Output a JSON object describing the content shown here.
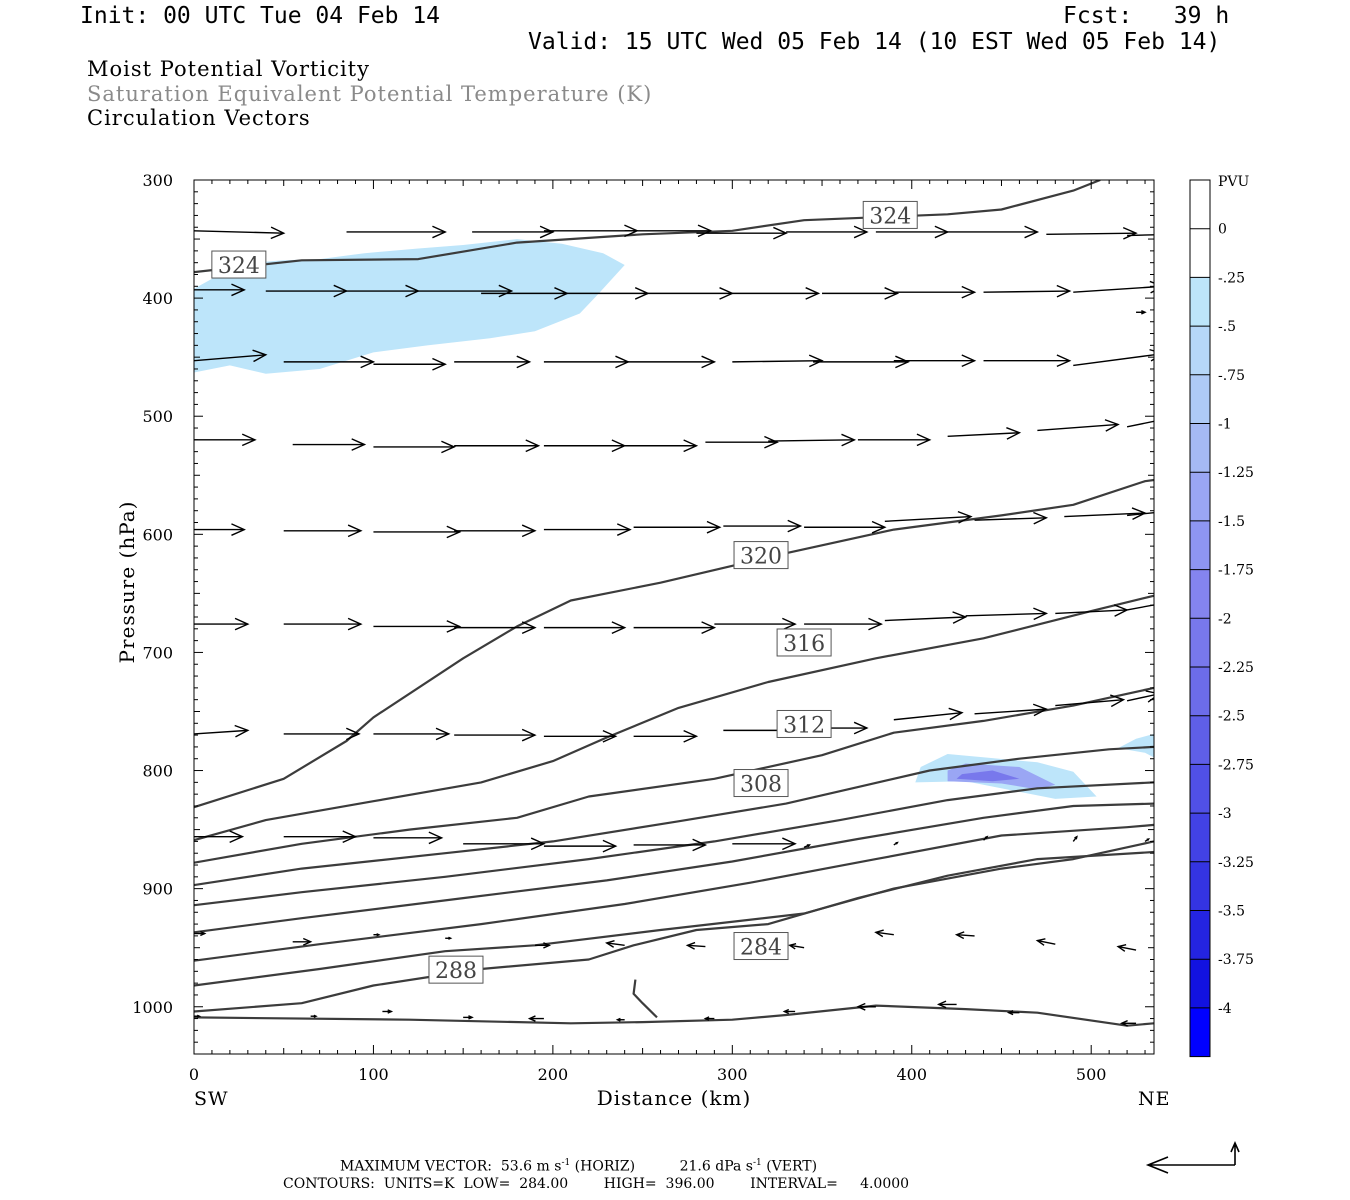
{
  "header": {
    "init": "Init: 00 UTC Tue 04 Feb 14",
    "fcst": "Fcst:   39 h",
    "valid": "Valid: 15 UTC Wed 05 Feb 14 (10 EST Wed 05 Feb 14)"
  },
  "titles": {
    "line1": "Moist Potential Vorticity",
    "line2": "Saturation Equivalent Potential Temperature (K)",
    "line3": "Circulation Vectors"
  },
  "colors": {
    "contour": "#3c3c3c",
    "pv_light": "#bde5fa",
    "pv_mid": "#9aa6f4",
    "pv_dark": "#7878ec",
    "arrow": "#000000"
  },
  "chart_data": {
    "type": "cross-section",
    "xlabel": "Distance (km)",
    "ylabel": "Pressure (hPa)",
    "xlim": [
      0,
      535
    ],
    "ylim": [
      1040,
      300
    ],
    "x_ticks": [
      0,
      100,
      200,
      300,
      400,
      500
    ],
    "y_ticks": [
      300,
      400,
      500,
      600,
      700,
      800,
      900,
      1000
    ],
    "x_end_labels": {
      "left": "SW",
      "right": "NE"
    },
    "colorbar": {
      "unit": "PVU",
      "labels": [
        "0",
        "-.25",
        "-.5",
        "-.75",
        "-1",
        "-1.25",
        "-1.5",
        "-1.75",
        "-2",
        "-2.25",
        "-2.5",
        "-2.75",
        "-3",
        "-3.25",
        "-3.5",
        "-3.75",
        "-4"
      ],
      "colors": [
        "#ffffff",
        "#ffffff",
        "#bde5fa",
        "#b6d7f8",
        "#aecaf6",
        "#a5b9f4",
        "#9aa6f4",
        "#8e95f2",
        "#8484ef",
        "#7878ec",
        "#6c6cea",
        "#5f5fe8",
        "#5050e6",
        "#4242e5",
        "#3434e3",
        "#2424e1",
        "#1212e0",
        "#0000ff"
      ]
    },
    "contour_labels": [
      {
        "text": "324",
        "x": 25,
        "p": 372
      },
      {
        "text": "324",
        "x": 388,
        "p": 330
      },
      {
        "text": "320",
        "x": 316,
        "p": 618
      },
      {
        "text": "316",
        "x": 340,
        "p": 692
      },
      {
        "text": "312",
        "x": 340,
        "p": 761
      },
      {
        "text": "308",
        "x": 316,
        "p": 811
      },
      {
        "text": "284",
        "x": 316,
        "p": 949
      },
      {
        "text": "288",
        "x": 146,
        "p": 969
      }
    ],
    "contours": [
      [
        [
          0,
          378
        ],
        [
          60,
          368
        ],
        [
          125,
          367
        ],
        [
          180,
          353
        ],
        [
          250,
          346
        ],
        [
          300,
          343
        ],
        [
          340,
          334
        ],
        [
          420,
          329
        ],
        [
          450,
          325
        ],
        [
          490,
          309
        ],
        [
          505,
          300
        ]
      ],
      [
        [
          0,
          831
        ],
        [
          50,
          807
        ],
        [
          85,
          775
        ],
        [
          100,
          755
        ],
        [
          150,
          705
        ],
        [
          180,
          678
        ],
        [
          210,
          656
        ],
        [
          260,
          641
        ],
        [
          330,
          616
        ],
        [
          390,
          596
        ],
        [
          450,
          584
        ],
        [
          490,
          575
        ],
        [
          530,
          555
        ],
        [
          535,
          554
        ]
      ],
      [
        [
          0,
          859
        ],
        [
          40,
          842
        ],
        [
          100,
          826
        ],
        [
          160,
          810
        ],
        [
          200,
          792
        ],
        [
          230,
          772
        ],
        [
          270,
          747
        ],
        [
          320,
          725
        ],
        [
          380,
          705
        ],
        [
          440,
          688
        ],
        [
          500,
          665
        ],
        [
          535,
          652
        ]
      ],
      [
        [
          0,
          878
        ],
        [
          60,
          862
        ],
        [
          120,
          850
        ],
        [
          180,
          840
        ],
        [
          220,
          822
        ],
        [
          290,
          807
        ],
        [
          350,
          787
        ],
        [
          390,
          768
        ],
        [
          440,
          758
        ],
        [
          490,
          745
        ],
        [
          535,
          730
        ]
      ],
      [
        [
          0,
          897
        ],
        [
          60,
          883
        ],
        [
          140,
          870
        ],
        [
          200,
          860
        ],
        [
          270,
          843
        ],
        [
          330,
          828
        ],
        [
          370,
          814
        ],
        [
          410,
          800
        ],
        [
          460,
          790
        ],
        [
          510,
          782
        ],
        [
          535,
          780
        ]
      ],
      [
        [
          0,
          914
        ],
        [
          60,
          903
        ],
        [
          140,
          890
        ],
        [
          220,
          875
        ],
        [
          290,
          860
        ],
        [
          360,
          842
        ],
        [
          420,
          825
        ],
        [
          470,
          815
        ],
        [
          535,
          810
        ]
      ],
      [
        [
          0,
          937
        ],
        [
          60,
          925
        ],
        [
          150,
          908
        ],
        [
          230,
          893
        ],
        [
          300,
          877
        ],
        [
          370,
          858
        ],
        [
          440,
          840
        ],
        [
          490,
          830
        ],
        [
          535,
          828
        ]
      ],
      [
        [
          0,
          961
        ],
        [
          70,
          947
        ],
        [
          160,
          930
        ],
        [
          240,
          913
        ],
        [
          310,
          895
        ],
        [
          380,
          875
        ],
        [
          450,
          855
        ],
        [
          520,
          848
        ],
        [
          535,
          846
        ]
      ],
      [
        [
          0,
          982
        ],
        [
          70,
          968
        ],
        [
          140,
          953
        ],
        [
          190,
          948
        ],
        [
          260,
          935
        ],
        [
          340,
          921
        ],
        [
          390,
          900
        ],
        [
          450,
          883
        ],
        [
          490,
          875
        ],
        [
          535,
          860
        ]
      ],
      [
        [
          0,
          1004
        ],
        [
          60,
          997
        ],
        [
          100,
          982
        ],
        [
          160,
          968
        ],
        [
          220,
          960
        ],
        [
          245,
          948
        ],
        [
          280,
          935
        ],
        [
          320,
          930
        ],
        [
          370,
          908
        ],
        [
          420,
          889
        ],
        [
          470,
          875
        ],
        [
          535,
          869
        ]
      ],
      [
        [
          0,
          1009
        ],
        [
          120,
          1011
        ],
        [
          210,
          1014
        ],
        [
          250,
          1013
        ],
        [
          300,
          1011
        ],
        [
          330,
          1007
        ],
        [
          380,
          999
        ],
        [
          430,
          1002
        ],
        [
          470,
          1005
        ],
        [
          520,
          1016
        ],
        [
          535,
          1014
        ]
      ],
      [
        [
          258,
          1009
        ],
        [
          250,
          997
        ],
        [
          245,
          989
        ],
        [
          246,
          977
        ]
      ]
    ],
    "pv_regions": [
      {
        "level": "-.25",
        "points": [
          [
            0,
            463
          ],
          [
            20,
            457
          ],
          [
            40,
            464
          ],
          [
            70,
            460
          ],
          [
            100,
            446
          ],
          [
            130,
            440
          ],
          [
            165,
            434
          ],
          [
            190,
            428
          ],
          [
            215,
            413
          ],
          [
            225,
            397
          ],
          [
            240,
            372
          ],
          [
            228,
            362
          ],
          [
            205,
            354
          ],
          [
            180,
            350
          ],
          [
            150,
            355
          ],
          [
            125,
            358
          ],
          [
            95,
            362
          ],
          [
            70,
            367
          ],
          [
            50,
            368
          ],
          [
            25,
            371
          ],
          [
            0,
            392
          ]
        ]
      },
      {
        "level": "-.25",
        "points": [
          [
            402,
            810
          ],
          [
            430,
            809
          ],
          [
            480,
            824
          ],
          [
            503,
            822
          ],
          [
            490,
            801
          ],
          [
            470,
            793
          ],
          [
            420,
            786
          ],
          [
            405,
            797
          ]
        ]
      },
      {
        "level": "-.75",
        "points": [
          [
            420,
            809
          ],
          [
            450,
            811
          ],
          [
            470,
            816
          ],
          [
            480,
            812
          ],
          [
            460,
            797
          ],
          [
            430,
            794
          ],
          [
            420,
            800
          ]
        ]
      },
      {
        "level": "-1.5",
        "points": [
          [
            425,
            807
          ],
          [
            445,
            809
          ],
          [
            460,
            807
          ],
          [
            445,
            800
          ],
          [
            428,
            803
          ]
        ]
      },
      {
        "level": "-.25",
        "points": [
          [
            515,
            781
          ],
          [
            530,
            785
          ],
          [
            535,
            789
          ],
          [
            535,
            769
          ],
          [
            525,
            773
          ]
        ]
      }
    ],
    "vectors_note": "arrows in data units: [x_km, p_hPa, dx_km, dp_hPa]",
    "vectors": [
      [
        0,
        343,
        50,
        2
      ],
      [
        85,
        344,
        55,
        0
      ],
      [
        155,
        344,
        45,
        0
      ],
      [
        195,
        343,
        52,
        0
      ],
      [
        240,
        343,
        48,
        0
      ],
      [
        280,
        345,
        50,
        0
      ],
      [
        330,
        344,
        45,
        0
      ],
      [
        380,
        344,
        40,
        0
      ],
      [
        420,
        344,
        50,
        0
      ],
      [
        475,
        346,
        50,
        -1
      ],
      [
        520,
        347,
        50,
        -2
      ],
      [
        0,
        393,
        28,
        0
      ],
      [
        40,
        394,
        45,
        0
      ],
      [
        85,
        394,
        40,
        0
      ],
      [
        125,
        394,
        52,
        0
      ],
      [
        160,
        396,
        48,
        0
      ],
      [
        205,
        396,
        48,
        0
      ],
      [
        250,
        396,
        50,
        0
      ],
      [
        300,
        396,
        48,
        0
      ],
      [
        350,
        396,
        42,
        0
      ],
      [
        390,
        395,
        45,
        0
      ],
      [
        440,
        395,
        48,
        -1
      ],
      [
        490,
        395,
        50,
        -5
      ],
      [
        0,
        453,
        40,
        -5
      ],
      [
        50,
        454,
        50,
        0
      ],
      [
        100,
        456,
        40,
        0
      ],
      [
        145,
        454,
        42,
        0
      ],
      [
        195,
        454,
        47,
        0
      ],
      [
        240,
        454,
        50,
        0
      ],
      [
        300,
        454,
        50,
        -1
      ],
      [
        345,
        454,
        53,
        0
      ],
      [
        390,
        453,
        45,
        0
      ],
      [
        440,
        453,
        48,
        0
      ],
      [
        490,
        457,
        50,
        -10
      ],
      [
        0,
        520,
        34,
        0
      ],
      [
        55,
        524,
        40,
        0
      ],
      [
        100,
        526,
        45,
        0
      ],
      [
        145,
        525,
        47,
        0
      ],
      [
        195,
        525,
        45,
        0
      ],
      [
        240,
        525,
        40,
        0
      ],
      [
        285,
        522,
        40,
        0
      ],
      [
        320,
        521,
        48,
        -1
      ],
      [
        370,
        520,
        40,
        0
      ],
      [
        420,
        517,
        40,
        -3
      ],
      [
        470,
        512,
        45,
        -5
      ],
      [
        520,
        509,
        32,
        -10
      ],
      [
        0,
        596,
        28,
        0
      ],
      [
        50,
        597,
        43,
        0
      ],
      [
        100,
        598,
        48,
        0
      ],
      [
        145,
        597,
        45,
        0
      ],
      [
        195,
        596,
        48,
        0
      ],
      [
        245,
        594,
        48,
        0
      ],
      [
        295,
        593,
        43,
        0
      ],
      [
        340,
        594,
        45,
        0
      ],
      [
        385,
        589,
        48,
        -4
      ],
      [
        435,
        588,
        40,
        -2
      ],
      [
        485,
        585,
        45,
        -3
      ],
      [
        520,
        584,
        32,
        -5
      ],
      [
        0,
        676,
        30,
        0
      ],
      [
        50,
        676,
        43,
        0
      ],
      [
        100,
        678,
        48,
        0
      ],
      [
        145,
        679,
        45,
        0
      ],
      [
        195,
        679,
        45,
        0
      ],
      [
        245,
        679,
        45,
        0
      ],
      [
        290,
        676,
        45,
        0
      ],
      [
        340,
        676,
        43,
        0
      ],
      [
        385,
        673,
        45,
        -3
      ],
      [
        430,
        669,
        45,
        -2
      ],
      [
        480,
        667,
        40,
        -3
      ],
      [
        520,
        664,
        32,
        -9
      ],
      [
        0,
        769,
        30,
        -3
      ],
      [
        50,
        769,
        42,
        0
      ],
      [
        100,
        769,
        42,
        0
      ],
      [
        145,
        770,
        45,
        0
      ],
      [
        195,
        771,
        40,
        0
      ],
      [
        245,
        771,
        35,
        0
      ],
      [
        295,
        766,
        40,
        0
      ],
      [
        340,
        764,
        35,
        0
      ],
      [
        390,
        757,
        38,
        -6
      ],
      [
        435,
        752,
        40,
        -4
      ],
      [
        480,
        745,
        38,
        -5
      ],
      [
        520,
        741,
        18,
        -6
      ],
      [
        0,
        856,
        27,
        0
      ],
      [
        50,
        856,
        40,
        0
      ],
      [
        100,
        857,
        38,
        0
      ],
      [
        150,
        862,
        45,
        0
      ],
      [
        195,
        864,
        40,
        0
      ],
      [
        245,
        863,
        40,
        0
      ],
      [
        300,
        862,
        35,
        0
      ],
      [
        340,
        865,
        3,
        -2
      ],
      [
        390,
        863,
        2,
        -2
      ],
      [
        440,
        859,
        2,
        -3
      ],
      [
        490,
        860,
        2,
        -4
      ],
      [
        530,
        860,
        2,
        -2
      ],
      [
        0,
        938,
        6,
        0
      ],
      [
        55,
        945,
        10,
        0
      ],
      [
        100,
        939,
        3,
        0
      ],
      [
        140,
        942,
        3,
        0
      ],
      [
        190,
        948,
        8,
        0
      ],
      [
        240,
        948,
        -10,
        -2
      ],
      [
        285,
        949,
        -10,
        -1
      ],
      [
        340,
        950,
        -8,
        -2
      ],
      [
        390,
        939,
        -10,
        -2
      ],
      [
        435,
        940,
        -10,
        -1
      ],
      [
        480,
        947,
        -10,
        -3
      ],
      [
        525,
        952,
        -10,
        -3
      ],
      [
        0,
        1008,
        3,
        0
      ],
      [
        65,
        1008,
        3,
        0
      ],
      [
        105,
        1004,
        5,
        0
      ],
      [
        150,
        1009,
        5,
        0
      ],
      [
        195,
        1010,
        -8,
        0
      ],
      [
        240,
        1011,
        -4,
        0
      ],
      [
        290,
        1010,
        -5,
        0
      ],
      [
        335,
        1004,
        -6,
        0
      ],
      [
        380,
        1000,
        -10,
        0
      ],
      [
        425,
        998,
        -10,
        0
      ],
      [
        460,
        1005,
        -6,
        0
      ],
      [
        525,
        1014,
        -8,
        0
      ],
      [
        525,
        412,
        5,
        0
      ]
    ]
  },
  "footer": {
    "max_vector_label": "MAXIMUM VECTOR:",
    "max_vector_horiz": "53.6 m s",
    "horiz_tag": "(HORIZ)",
    "max_vector_vert": "21.6 dPa s",
    "vert_tag": "(VERT)",
    "exponent": "-1",
    "contours": "CONTOURS:  UNITS=K  LOW=  284.00        HIGH=  396.00        INTERVAL=     4.0000"
  }
}
